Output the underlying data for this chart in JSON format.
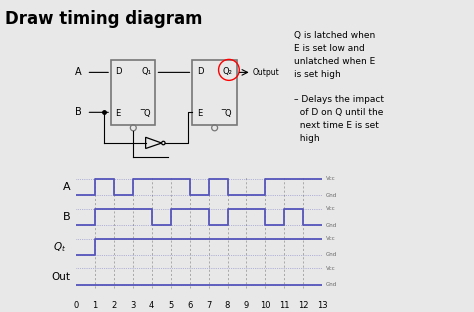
{
  "title": "Draw timing diagram",
  "title_fontsize": 12,
  "title_fontweight": "bold",
  "background_color": "#e8e8e8",
  "signal_color": "#5555bb",
  "text_color": "#000000",
  "figsize": [
    4.74,
    3.12
  ],
  "dpi": 100,
  "A_steps_t": [
    0,
    1,
    2,
    3,
    4,
    5,
    6,
    7,
    8,
    9,
    10,
    11,
    12,
    13
  ],
  "A_steps_v": [
    0,
    1,
    0,
    1,
    1,
    1,
    0,
    1,
    0,
    0,
    1,
    1,
    1,
    1
  ],
  "B_steps_t": [
    0,
    1,
    2,
    3,
    4,
    5,
    6,
    7,
    8,
    9,
    10,
    11,
    12,
    13
  ],
  "B_steps_v": [
    0,
    1,
    1,
    1,
    0,
    1,
    1,
    0,
    1,
    1,
    0,
    1,
    0,
    0
  ],
  "Qt_steps_t": [
    0,
    1,
    13
  ],
  "Qt_steps_v": [
    0,
    1,
    1
  ],
  "Out_steps_t": [
    0,
    1,
    2,
    13
  ],
  "Out_steps_v": [
    0,
    0,
    0,
    0
  ],
  "tick_labels": [
    "0",
    "1",
    "2",
    "3",
    "4",
    "5",
    "6",
    "7",
    "8",
    "9",
    "10",
    "11",
    "12",
    "13"
  ],
  "note_text": "Q is latched when\nE is set low and\nunlatched when E\nis set high\n\n– Delays the impact\n  of D on Q until the\n  next time E is set\n  high",
  "circuit_box_color": "#777777"
}
